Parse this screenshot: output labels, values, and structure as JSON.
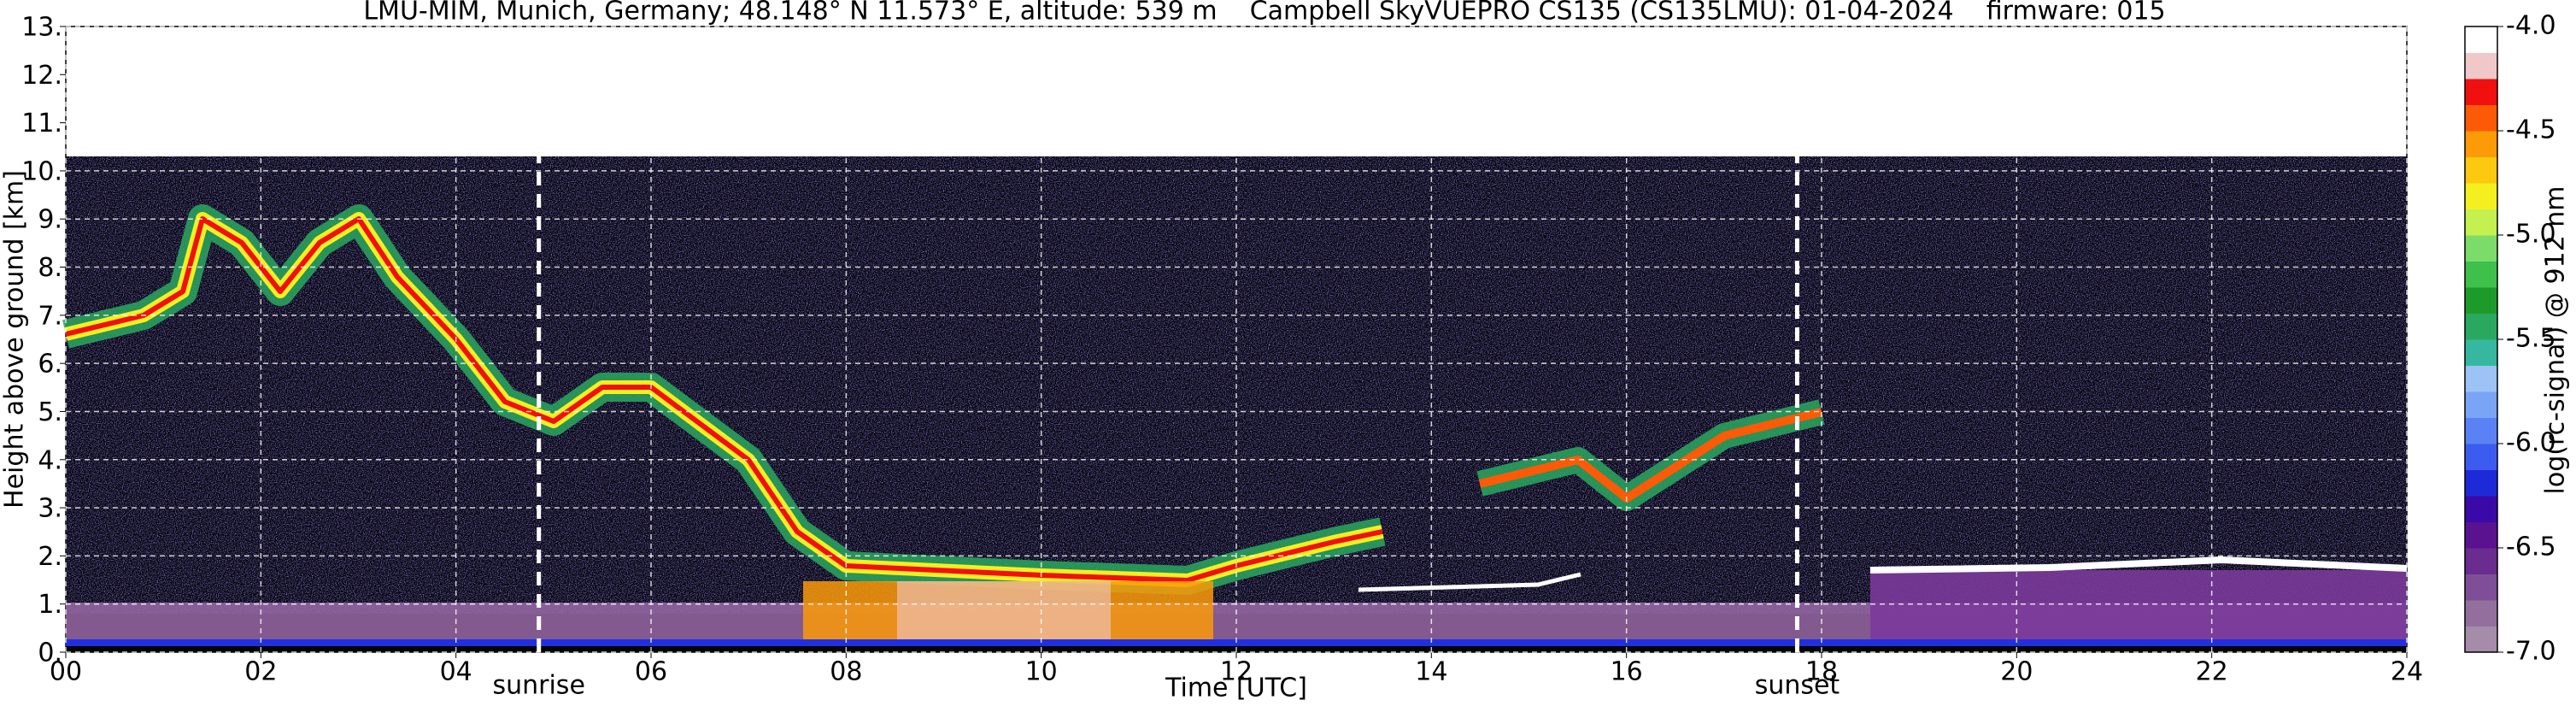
{
  "chart_data": {
    "type": "heatmap",
    "title": "LMU-MIM, Munich, Germany; 48.148° N 11.573° E, altitude: 539 m    Campbell SkyVUEPRO CS135 (CS135LMU): 01-04-2024    firmware: 015",
    "xlabel": "Time [UTC]",
    "ylabel": "Height above ground [km]",
    "xlim": [
      0,
      24
    ],
    "xticks": [
      {
        "value": 0,
        "label": "00"
      },
      {
        "value": 2,
        "label": "02"
      },
      {
        "value": 4,
        "label": "04"
      },
      {
        "value": 6,
        "label": "06"
      },
      {
        "value": 8,
        "label": "08"
      },
      10,
      12,
      14,
      16,
      18,
      20,
      22,
      24
    ],
    "ylim": [
      0,
      13
    ],
    "yticks": [
      {
        "value": 0,
        "label": "0."
      },
      {
        "value": 1,
        "label": "1."
      },
      {
        "value": 2,
        "label": "2."
      },
      {
        "value": 3,
        "label": "3."
      },
      {
        "value": 4,
        "label": "4."
      },
      {
        "value": 5,
        "label": "5."
      },
      {
        "value": 6,
        "label": "6."
      },
      {
        "value": 7,
        "label": "7."
      },
      {
        "value": 8,
        "label": "8."
      },
      {
        "value": 9,
        "label": "9."
      },
      {
        "value": 10,
        "label": "10."
      },
      {
        "value": 11,
        "label": "11."
      },
      {
        "value": 12,
        "label": "12."
      },
      {
        "value": 13,
        "label": "13."
      }
    ],
    "grid": true,
    "annotations": [
      {
        "x": 4.85,
        "text": "sunrise"
      },
      {
        "x": 17.75,
        "text": "sunset"
      }
    ],
    "colorbar": {
      "label": "log(rc-signal) @ 912 nm",
      "lim": [
        -7,
        -4
      ],
      "ticks": [
        {
          "value": -7,
          "label": "-7.0"
        },
        {
          "value": -6.5,
          "label": "-6.5"
        },
        {
          "value": -6,
          "label": "-6.0"
        },
        {
          "value": -5.5,
          "label": "-5.5"
        },
        {
          "value": -5,
          "label": "-5.0"
        },
        {
          "value": -4.5,
          "label": "-4.5"
        },
        {
          "value": -4,
          "label": "-4.0"
        }
      ],
      "colors": [
        "#a58ca8",
        "#936f9e",
        "#7e4f96",
        "#6a2c8e",
        "#5a1290",
        "#3a0aa8",
        "#1e2ad8",
        "#3c5cf0",
        "#5a82f4",
        "#7aa4f6",
        "#9cc2f6",
        "#36b8a0",
        "#2aa860",
        "#1e9a2a",
        "#3fc04a",
        "#7cdc6a",
        "#c4f050",
        "#f4f020",
        "#fcc810",
        "#fc9a08",
        "#fc5a06",
        "#f01010",
        "#f0c8c8",
        "#ffffff"
      ]
    }
  }
}
